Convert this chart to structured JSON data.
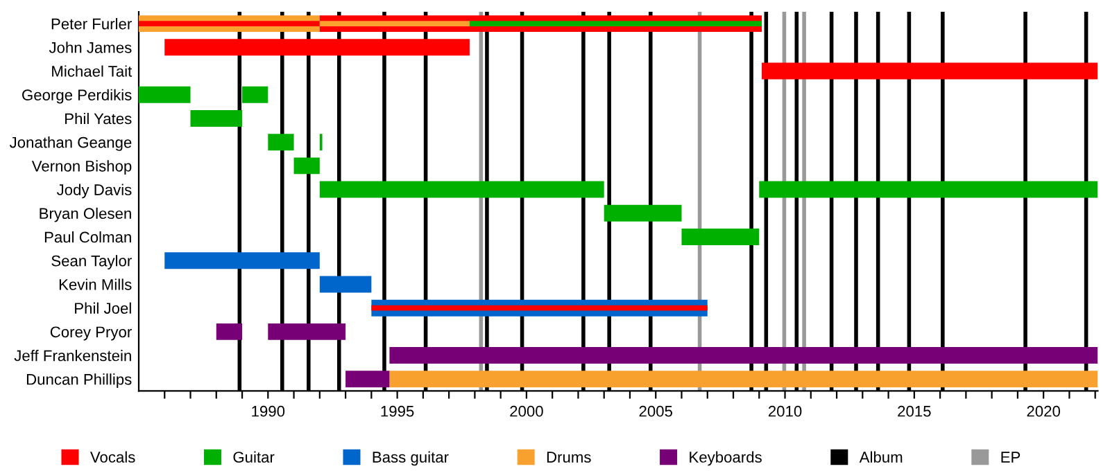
{
  "chart_data": {
    "type": "bar",
    "orientation": "horizontal",
    "legend": "bottom",
    "grid": false,
    "categories": [
      "Peter Furler",
      "John James",
      "Michael Tait",
      "George Perdikis",
      "Phil Yates",
      "Jonathan Geange",
      "Vernon Bishop",
      "Jody Davis",
      "Bryan Olesen",
      "Paul Colman",
      "Sean Taylor",
      "Kevin Mills",
      "Phil Joel",
      "Corey Pryor",
      "Jeff Frankenstein",
      "Duncan Phillips"
    ],
    "series": [
      {
        "name": "Drums",
        "color": "#f9a12e",
        "base": [
          1985,
          null,
          null,
          null,
          null,
          null,
          null,
          null,
          null,
          null,
          null,
          null,
          null,
          null,
          null,
          1994.7
        ],
        "values": [
          7.0,
          null,
          null,
          null,
          null,
          null,
          null,
          null,
          null,
          null,
          null,
          null,
          null,
          null,
          null,
          27.4
        ]
      },
      {
        "name": "Bass guitar",
        "color": "#0066cc",
        "base": [
          null,
          null,
          null,
          null,
          null,
          null,
          null,
          null,
          null,
          null,
          1986.0,
          1992.0,
          1994.0,
          null,
          null,
          null
        ],
        "values": [
          null,
          null,
          null,
          null,
          null,
          null,
          null,
          null,
          null,
          null,
          6.0,
          2.0,
          13.0,
          null,
          null,
          null
        ]
      },
      {
        "name": "Vocals",
        "color": "#ff0000",
        "base": [
          1985,
          1986.0,
          2009.1,
          null,
          null,
          null,
          null,
          null,
          null,
          null,
          null,
          null,
          1994.0,
          null,
          null,
          null
        ],
        "values": [
          7.0,
          11.8,
          13.0,
          null,
          null,
          null,
          null,
          null,
          null,
          null,
          null,
          null,
          13.0,
          null,
          null,
          null
        ]
      },
      {
        "color": "#ff0000",
        "base": [
          1992.0,
          null,
          null,
          null,
          null,
          null,
          null,
          null,
          null,
          null,
          null,
          null,
          null,
          null,
          null,
          null
        ],
        "values": [
          17.1,
          null,
          null,
          null,
          null,
          null,
          null,
          null,
          null,
          null,
          null,
          null,
          null,
          null,
          null,
          null
        ]
      },
      {
        "color": "#f9a12e",
        "base": [
          1992.0,
          null,
          null,
          null,
          null,
          null,
          null,
          null,
          null,
          null,
          null,
          null,
          null,
          null,
          null,
          null
        ],
        "values": [
          5.8,
          null,
          null,
          null,
          null,
          null,
          null,
          null,
          null,
          null,
          null,
          null,
          null,
          null,
          null,
          null
        ]
      },
      {
        "name": "Guitar",
        "color": "#00b000",
        "base": [
          1997.8,
          null,
          null,
          1985,
          1987.0,
          1990.0,
          1991.0,
          1992.0,
          2003.0,
          2006.0,
          null,
          null,
          null,
          null,
          null,
          null
        ],
        "values": [
          11.3,
          null,
          null,
          2.0,
          2.0,
          1.0,
          1.0,
          11.0,
          3.0,
          3.0,
          null,
          null,
          null,
          null,
          null,
          null
        ]
      },
      {
        "color": "#00b000",
        "base": [
          null,
          null,
          null,
          1989.0,
          null,
          1992.0,
          null,
          2009.0,
          null,
          null,
          null,
          null,
          null,
          null,
          null,
          null
        ],
        "values": [
          null,
          null,
          null,
          1.0,
          null,
          0.1,
          null,
          13.1,
          null,
          null,
          null,
          null,
          null,
          null,
          null,
          null
        ]
      },
      {
        "name": "Keyboards",
        "color": "#770077",
        "base": [
          null,
          null,
          null,
          null,
          null,
          null,
          null,
          null,
          null,
          null,
          null,
          null,
          null,
          1988.0,
          1994.7,
          1993.0
        ],
        "values": [
          null,
          null,
          null,
          null,
          null,
          null,
          null,
          null,
          null,
          null,
          null,
          null,
          null,
          1.0,
          27.4,
          1.7
        ]
      },
      {
        "color": "#770077",
        "base": [
          null,
          null,
          null,
          null,
          null,
          null,
          null,
          null,
          null,
          null,
          null,
          null,
          null,
          1990.0,
          null,
          null
        ],
        "values": [
          null,
          null,
          null,
          null,
          null,
          null,
          null,
          null,
          null,
          null,
          null,
          null,
          null,
          3.0,
          null,
          null
        ]
      }
    ],
    "ref_lines": [
      {
        "axis": "x",
        "value": 1988.9,
        "label": "Album",
        "color": "#000000"
      },
      {
        "axis": "x",
        "value": 1990.55,
        "color": "#000000"
      },
      {
        "axis": "x",
        "value": 1991.57,
        "color": "#000000"
      },
      {
        "axis": "x",
        "value": 1992.75,
        "color": "#000000"
      },
      {
        "axis": "x",
        "value": 1994.5,
        "color": "#000000"
      },
      {
        "axis": "x",
        "value": 1996.1,
        "color": "#000000"
      },
      {
        "axis": "x",
        "value": 1998.24,
        "label": "EP",
        "color": "#999999"
      },
      {
        "axis": "x",
        "value": 1998.47,
        "color": "#000000"
      },
      {
        "axis": "x",
        "value": 1999.83,
        "color": "#000000"
      },
      {
        "axis": "x",
        "value": 2002.2,
        "color": "#000000"
      },
      {
        "axis": "x",
        "value": 2003.2,
        "color": "#000000"
      },
      {
        "axis": "x",
        "value": 2004.8,
        "color": "#000000"
      },
      {
        "axis": "x",
        "value": 2006.7,
        "color": "#999999"
      },
      {
        "axis": "x",
        "value": 2008.7,
        "color": "#000000"
      },
      {
        "axis": "x",
        "value": 2009.27,
        "color": "#000000"
      },
      {
        "axis": "x",
        "value": 2009.97,
        "color": "#999999"
      },
      {
        "axis": "x",
        "value": 2010.45,
        "color": "#000000"
      },
      {
        "axis": "x",
        "value": 2010.74,
        "color": "#999999"
      },
      {
        "axis": "x",
        "value": 2011.8,
        "color": "#000000"
      },
      {
        "axis": "x",
        "value": 2012.75,
        "color": "#000000"
      },
      {
        "axis": "x",
        "value": 2013.6,
        "color": "#000000"
      },
      {
        "axis": "x",
        "value": 2014.8,
        "color": "#000000"
      },
      {
        "axis": "x",
        "value": 2016.1,
        "color": "#000000"
      },
      {
        "axis": "x",
        "value": 2019.3,
        "color": "#000000"
      },
      {
        "axis": "x",
        "value": 2021.65,
        "color": "#000000"
      }
    ],
    "xlim": [
      1985,
      2022.1
    ],
    "xticks": [
      {
        "value": 1986,
        "label": null
      },
      {
        "value": 1987,
        "label": null
      },
      {
        "value": 1988,
        "label": null
      },
      {
        "value": 1989,
        "label": null
      },
      1990,
      {
        "value": 1991,
        "label": null
      },
      {
        "value": 1992,
        "label": null
      },
      {
        "value": 1993,
        "label": null
      },
      {
        "value": 1994,
        "label": null
      },
      1995,
      {
        "value": 1996,
        "label": null
      },
      {
        "value": 1997,
        "label": null
      },
      {
        "value": 1998,
        "label": null
      },
      {
        "value": 1999,
        "label": null
      },
      2000,
      {
        "value": 2001,
        "label": null
      },
      {
        "value": 2002,
        "label": null
      },
      {
        "value": 2003,
        "label": null
      },
      {
        "value": 2004,
        "label": null
      },
      2005,
      {
        "value": 2006,
        "label": null
      },
      {
        "value": 2007,
        "label": null
      },
      {
        "value": 2008,
        "label": null
      },
      {
        "value": 2009,
        "label": null
      },
      2010,
      {
        "value": 2011,
        "label": null
      },
      {
        "value": 2012,
        "label": null
      },
      {
        "value": 2013,
        "label": null
      },
      {
        "value": 2014,
        "label": null
      },
      2015,
      {
        "value": 2016,
        "label": null
      },
      {
        "value": 2017,
        "label": null
      },
      {
        "value": 2018,
        "label": null
      },
      {
        "value": 2019,
        "label": null
      },
      2020,
      {
        "value": 2021,
        "label": null
      },
      {
        "value": 2022,
        "label": null
      }
    ]
  }
}
